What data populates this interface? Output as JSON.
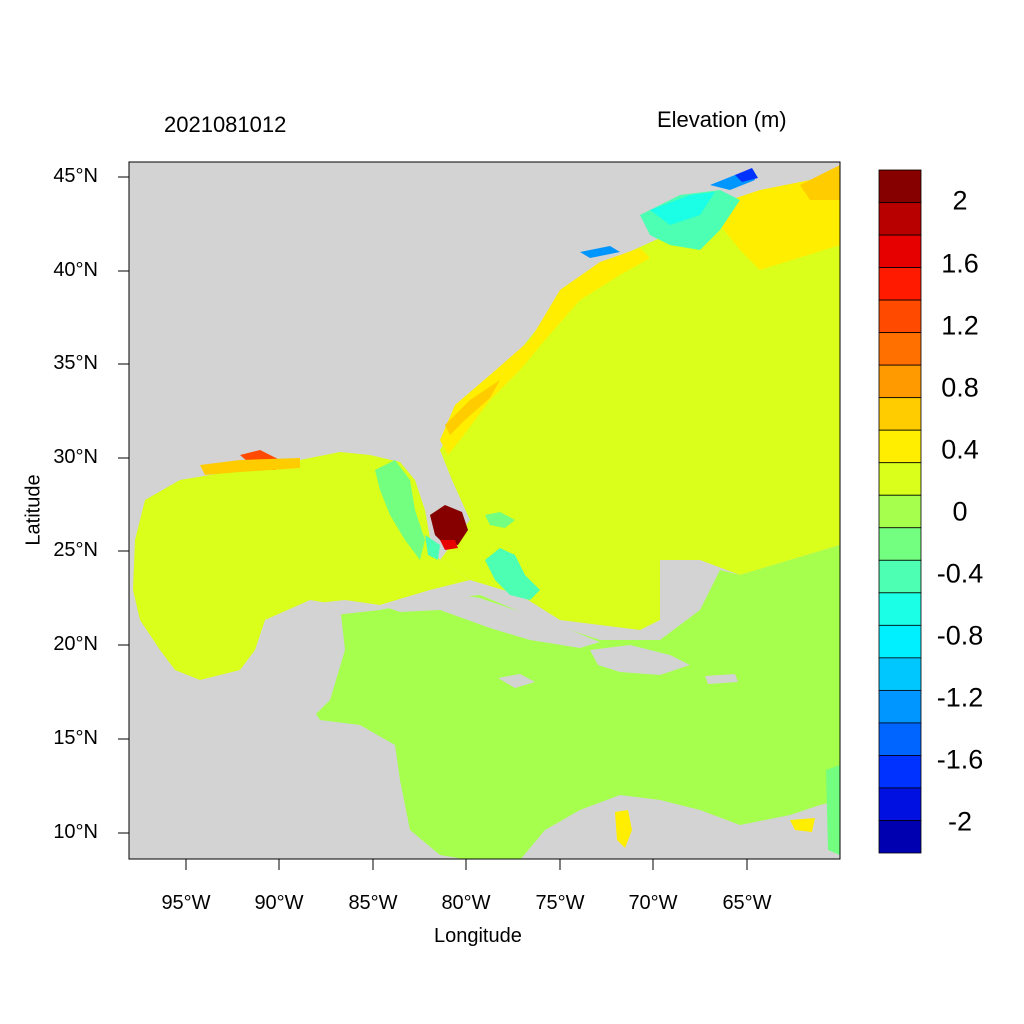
{
  "header": {
    "date": "2021081012",
    "variable": "Elevation (m)"
  },
  "axes": {
    "xlabel": "Longitude",
    "ylabel": "Latitude",
    "xticks": [
      "95°W",
      "90°W",
      "85°W",
      "80°W",
      "75°W",
      "70°W",
      "65°W"
    ],
    "yticks": [
      "45°N",
      "40°N",
      "35°N",
      "30°N",
      "25°N",
      "20°N",
      "15°N",
      "10°N"
    ]
  },
  "colorbar": {
    "labels": [
      "2",
      "1.6",
      "1.2",
      "0.8",
      "0.4",
      "0",
      "-0.4",
      "-0.8",
      "-1.2",
      "-1.6",
      "-2"
    ],
    "colors": [
      "#870000",
      "#b80000",
      "#e60000",
      "#ff1a00",
      "#ff4a00",
      "#ff7000",
      "#ff9a00",
      "#ffcc00",
      "#ffee00",
      "#d9ff1a",
      "#a6ff4d",
      "#73ff80",
      "#4dffb3",
      "#1affe6",
      "#00f0ff",
      "#00c8ff",
      "#0096ff",
      "#0064ff",
      "#0032ff",
      "#0010e0",
      "#0000b0"
    ]
  },
  "map": {
    "land_color": "#d3d3d3",
    "dominant_color_gulf_atlantic": "#d9ff1a",
    "dominant_color_caribbean": "#a6ff4d"
  }
}
